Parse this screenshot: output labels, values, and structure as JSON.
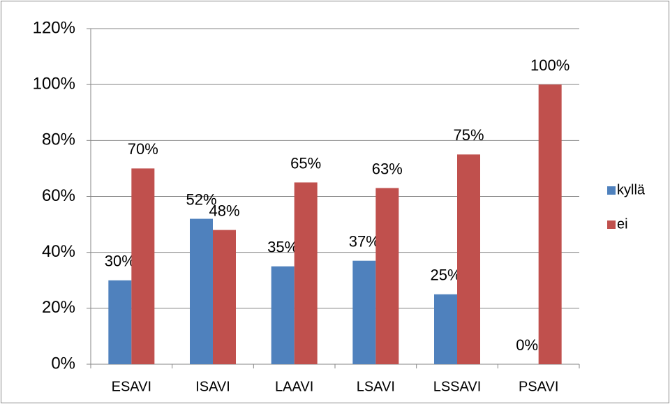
{
  "chart_data": {
    "type": "bar",
    "categories": [
      "ESAVI",
      "ISAVI",
      "LAAVI",
      "LSAVI",
      "LSSAVI",
      "PSAVI"
    ],
    "series": [
      {
        "name": "kyllä",
        "color": "#4f81bd",
        "values": [
          30,
          52,
          35,
          37,
          25,
          0
        ],
        "value_labels": [
          "30%",
          "52%",
          "35%",
          "37%",
          "25%",
          "0%"
        ]
      },
      {
        "name": "ei",
        "color": "#c0504d",
        "values": [
          70,
          48,
          65,
          63,
          75,
          100
        ],
        "value_labels": [
          "70%",
          "48%",
          "65%",
          "63%",
          "75%",
          "100%"
        ]
      }
    ],
    "ylim": [
      0,
      120
    ],
    "yticks": [
      {
        "value": 0,
        "label": "0%"
      },
      {
        "value": 20,
        "label": "20%"
      },
      {
        "value": 40,
        "label": "40%"
      },
      {
        "value": 60,
        "label": "60%"
      },
      {
        "value": 80,
        "label": "80%"
      },
      {
        "value": 100,
        "label": "100%"
      },
      {
        "value": 120,
        "label": "120%"
      }
    ],
    "grid": true,
    "legend": "right"
  }
}
